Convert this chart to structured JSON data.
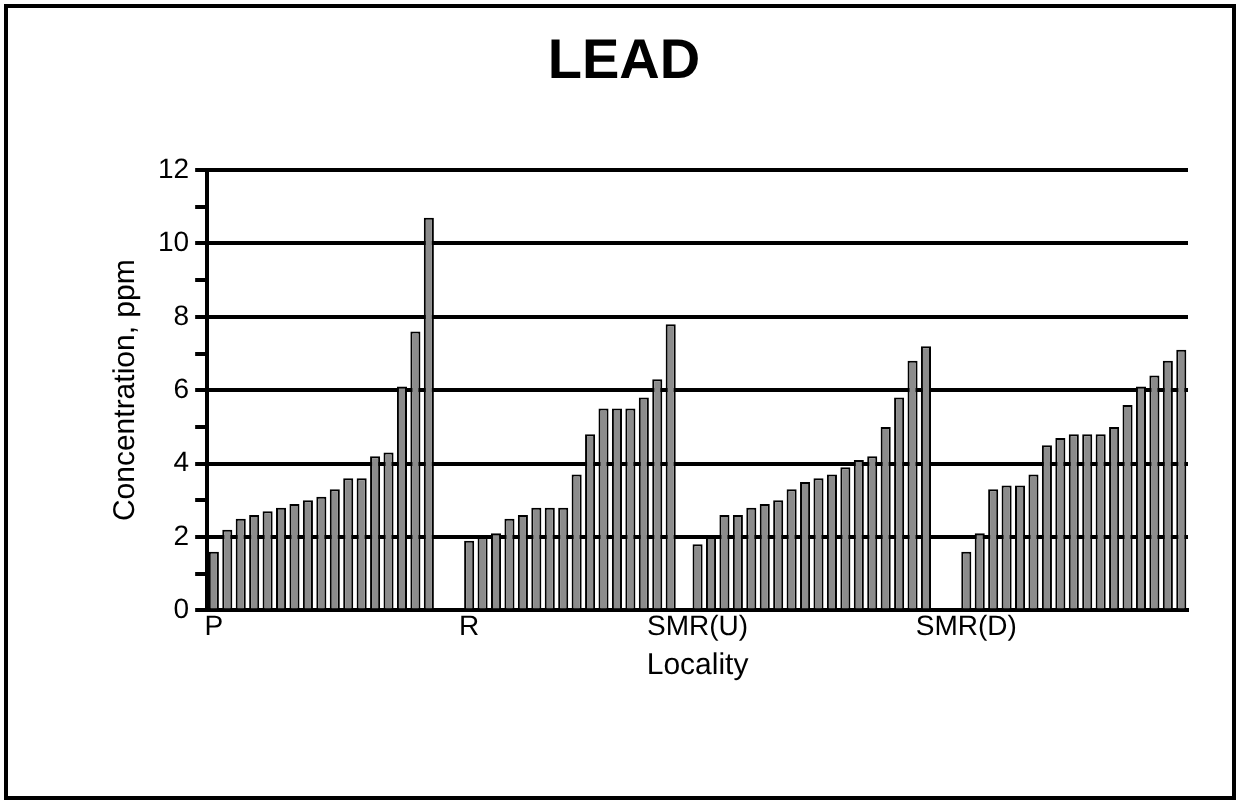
{
  "chart_data": {
    "type": "bar",
    "title": "LEAD",
    "xlabel": "Locality",
    "ylabel": "Concentration, ppm",
    "categories": [
      "P",
      null,
      null,
      null,
      null,
      null,
      null,
      null,
      null,
      null,
      null,
      null,
      null,
      null,
      null,
      null,
      null,
      null,
      null,
      "R",
      null,
      null,
      null,
      null,
      null,
      null,
      null,
      null,
      null,
      null,
      null,
      null,
      null,
      null,
      null,
      null,
      "SMR(U)",
      null,
      null,
      null,
      null,
      null,
      null,
      null,
      null,
      null,
      null,
      null,
      null,
      null,
      null,
      null,
      null,
      null,
      null,
      null,
      "SMR(D)",
      null,
      null,
      null,
      null,
      null,
      null,
      null,
      null,
      null,
      null,
      null,
      null,
      null,
      null,
      null,
      null
    ],
    "values": [
      1.6,
      2.2,
      2.5,
      2.6,
      2.7,
      2.8,
      2.9,
      3.0,
      3.1,
      3.3,
      3.6,
      3.6,
      4.2,
      4.3,
      6.1,
      7.6,
      10.7,
      null,
      null,
      1.9,
      2.0,
      2.1,
      2.5,
      2.6,
      2.8,
      2.8,
      2.8,
      3.7,
      4.8,
      5.5,
      5.5,
      5.5,
      5.8,
      6.3,
      7.8,
      null,
      1.8,
      2.0,
      2.6,
      2.6,
      2.8,
      2.9,
      3.0,
      3.3,
      3.5,
      3.6,
      3.7,
      3.9,
      4.1,
      4.2,
      5.0,
      5.8,
      6.8,
      7.2,
      null,
      null,
      1.6,
      2.1,
      3.3,
      3.4,
      3.4,
      3.7,
      4.5,
      4.7,
      4.8,
      4.8,
      4.8,
      5.0,
      5.6,
      6.1,
      6.4,
      6.8,
      7.1
    ],
    "color": "#8c8c8c",
    "ylim": [
      0,
      12
    ],
    "yticks": [
      0,
      {
        "value": 1,
        "label": null
      },
      2,
      {
        "value": 3,
        "label": null
      },
      4,
      {
        "value": 5,
        "label": null
      },
      6,
      {
        "value": 7,
        "label": null
      },
      8,
      {
        "value": 9,
        "label": null
      },
      10,
      {
        "value": 11,
        "label": null
      },
      12
    ],
    "grid": "y"
  }
}
